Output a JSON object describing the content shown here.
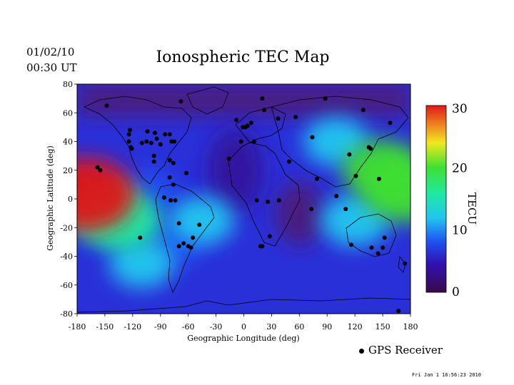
{
  "header": {
    "date": "01/02/10",
    "time": "00:30 UT"
  },
  "footer": {
    "stamp": "Fri Jan  1 16:56:23 2010"
  },
  "legend": {
    "marker_label": "GPS Receiver"
  },
  "colorbar": {
    "label": "TECU",
    "ticks": [
      0,
      10,
      20,
      30
    ],
    "range": [
      0,
      30
    ]
  },
  "colors": {
    "frame": "#000000",
    "marker": "#000000"
  },
  "chart_data": {
    "type": "heatmap",
    "title": "Ionospheric TEC Map",
    "xlabel": "Geographic Longitude (deg)",
    "ylabel": "Geographic Latitude (deg)",
    "xlim": [
      -180,
      180
    ],
    "ylim": [
      -80,
      80
    ],
    "xticks": [
      -180,
      -150,
      -120,
      -90,
      -60,
      -30,
      0,
      30,
      60,
      90,
      120,
      150,
      180
    ],
    "yticks": [
      -80,
      -60,
      -40,
      -20,
      0,
      20,
      40,
      60,
      80
    ],
    "zlabel": "TECU",
    "zlim": [
      0,
      30
    ],
    "tec_peaks": [
      {
        "lon": -170,
        "lat": 3,
        "tec": 30
      },
      {
        "lon": -150,
        "lat": -10,
        "tec": 19
      },
      {
        "lon": -130,
        "lat": -15,
        "tec": 18
      },
      {
        "lon": -105,
        "lat": 5,
        "tec": 11
      },
      {
        "lon": -45,
        "lat": -15,
        "tec": 12
      },
      {
        "lon": -75,
        "lat": -30,
        "tec": 11
      },
      {
        "lon": 175,
        "lat": 5,
        "tec": 21
      },
      {
        "lon": 150,
        "lat": 20,
        "tec": 20
      },
      {
        "lon": 120,
        "lat": -15,
        "tec": 14
      },
      {
        "lon": -110,
        "lat": -45,
        "tec": 12
      },
      {
        "lon": 100,
        "lat": 40,
        "tec": 12
      }
    ],
    "receivers": [
      [
        -148,
        65
      ],
      [
        -158,
        22
      ],
      [
        -155,
        20
      ],
      [
        -123,
        48
      ],
      [
        -124,
        45
      ],
      [
        -124,
        40
      ],
      [
        -122,
        36
      ],
      [
        -121,
        35
      ],
      [
        -110,
        39
      ],
      [
        -105,
        40
      ],
      [
        -100,
        39
      ],
      [
        -97,
        30
      ],
      [
        -97,
        26
      ],
      [
        -94,
        42
      ],
      [
        -90,
        38
      ],
      [
        -85,
        45
      ],
      [
        -80,
        45
      ],
      [
        -78,
        40
      ],
      [
        -75,
        40
      ],
      [
        -68,
        68
      ],
      [
        -80,
        27
      ],
      [
        -76,
        25
      ],
      [
        -80,
        15
      ],
      [
        -76,
        10
      ],
      [
        -86,
        1
      ],
      [
        -79,
        -1
      ],
      [
        -74,
        -1
      ],
      [
        -62,
        18
      ],
      [
        -104,
        47
      ],
      [
        -96,
        46
      ],
      [
        -70,
        -17
      ],
      [
        -70,
        -33
      ],
      [
        -65,
        -31
      ],
      [
        -60,
        -33
      ],
      [
        -57,
        -34
      ],
      [
        -55,
        -27
      ],
      [
        -48,
        -18
      ],
      [
        -112,
        -27
      ],
      [
        -16,
        28
      ],
      [
        -8,
        55
      ],
      [
        -1,
        50
      ],
      [
        2,
        50
      ],
      [
        4,
        51
      ],
      [
        8,
        53
      ],
      [
        11,
        40
      ],
      [
        -3,
        40
      ],
      [
        20,
        70
      ],
      [
        22,
        62
      ],
      [
        37,
        56
      ],
      [
        56,
        57
      ],
      [
        74,
        43
      ],
      [
        88,
        70
      ],
      [
        26,
        -2
      ],
      [
        14,
        -1
      ],
      [
        38,
        -1
      ],
      [
        28,
        -26
      ],
      [
        20,
        -33
      ],
      [
        18,
        -33
      ],
      [
        49,
        26
      ],
      [
        79,
        14
      ],
      [
        73,
        -7
      ],
      [
        100,
        2
      ],
      [
        110,
        -7
      ],
      [
        114,
        31
      ],
      [
        121,
        16
      ],
      [
        135,
        36
      ],
      [
        137,
        35
      ],
      [
        146,
        14
      ],
      [
        129,
        62
      ],
      [
        158,
        53
      ],
      [
        116,
        -32
      ],
      [
        138,
        -34
      ],
      [
        145,
        -38
      ],
      [
        150,
        -34
      ],
      [
        152,
        -27
      ],
      [
        174,
        -45
      ],
      [
        167,
        -78
      ]
    ]
  }
}
